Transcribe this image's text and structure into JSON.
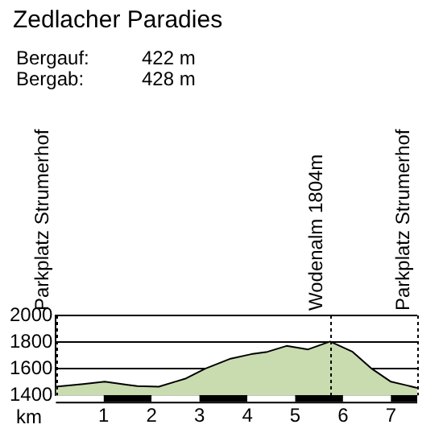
{
  "chart_data": {
    "type": "area",
    "title": "Zedlacher Paradies",
    "annotations": [
      "Bergauf:\t422 m",
      "Bergab:\t428 m"
    ],
    "xlabel": "km",
    "x": [
      0,
      0.57,
      1.02,
      1.47,
      1.7,
      2.15,
      2.49,
      2.72,
      3.12,
      3.63,
      4.08,
      4.42,
      4.82,
      5.27,
      5.73,
      6.2,
      6.6,
      7.0,
      7.35,
      7.55
    ],
    "series": [
      {
        "color": "#c8dcaf",
        "values": [
          1465,
          1484,
          1502,
          1480,
          1469,
          1465,
          1502,
          1527,
          1600,
          1673,
          1709,
          1727,
          1771,
          1745,
          1804,
          1727,
          1600,
          1502,
          1473,
          1455
        ]
      }
    ],
    "xlim": [
      0,
      7.55
    ],
    "xticks": [
      1,
      2,
      3,
      4,
      5,
      6,
      7
    ],
    "ylim": [
      1400,
      2000
    ],
    "yticks": [
      1400,
      1600,
      1800,
      2000
    ],
    "grid": "y",
    "line_style": "solid",
    "marker": "none",
    "legend": false,
    "ref_lines": [
      {
        "axis": "x",
        "value": 0,
        "label": "Parkplatz Strumerhof",
        "line_style": "dotted",
        "color": "#000000"
      },
      {
        "axis": "x",
        "value": 5.73,
        "label": "Wodenalm 1804m",
        "line_style": "dotted",
        "color": "#000000"
      },
      {
        "axis": "x",
        "value": 7.55,
        "label": "Parkplatz Strumerhof",
        "line_style": "dotted",
        "color": "#000000"
      }
    ]
  }
}
